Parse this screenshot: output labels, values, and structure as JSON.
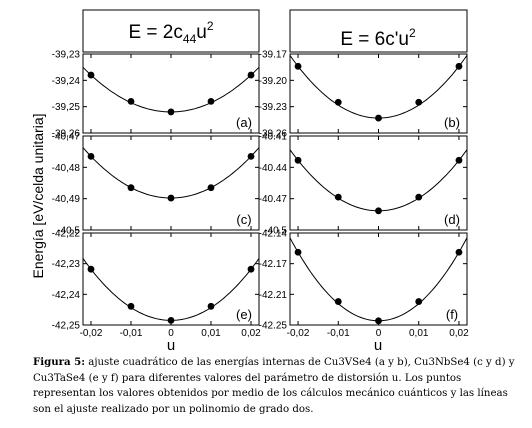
{
  "header": {
    "left": {
      "prefix": "E = 2c",
      "sub": "44",
      "var": "u",
      "sup": "2"
    },
    "right": {
      "prefix": "E = 6c'u",
      "sup": "2"
    }
  },
  "ylabel": "Energía [eV/celda unitaria]",
  "xlabel": "u",
  "caption": {
    "label": "Figura 5:",
    "text": "ajuste cuadrático de las energías internas de Cu3VSe4 (a y b), Cu3NbSe4 (c y d) y Cu3TaSe4 (e y f) para diferentes valores del parámetro de distorsión u. Los puntos representan los valores obtenidos por medio de los cálculos mecánico cuánticos y las líneas son el ajuste realizado por un polinomio de grado dos."
  },
  "chart_data": [
    {
      "panel": "a",
      "type": "scatter",
      "x": [
        -0.02,
        -0.01,
        0,
        0.01,
        0.02
      ],
      "y": [
        -39.238,
        -39.248,
        -39.252,
        -39.248,
        -39.238
      ],
      "ylim": [
        -39.26,
        -39.23
      ],
      "yticks": [
        "-39,23",
        "-39,24",
        "-39,25",
        "-39,26"
      ],
      "xticks": []
    },
    {
      "panel": "b",
      "type": "scatter",
      "x": [
        -0.02,
        -0.01,
        0,
        0.01,
        0.02
      ],
      "y": [
        -39.184,
        -39.225,
        -39.243,
        -39.225,
        -39.184
      ],
      "ylim": [
        -39.26,
        -39.17
      ],
      "yticks": [
        "-39.17",
        "-39.20",
        "-39.23",
        "-39.26"
      ],
      "xticks": []
    },
    {
      "panel": "c",
      "type": "scatter",
      "x": [
        -0.02,
        -0.01,
        0,
        0.01,
        0.02
      ],
      "y": [
        -40.4765,
        -40.4865,
        -40.4898,
        -40.4865,
        -40.4765
      ],
      "ylim": [
        -40.5,
        -40.47
      ],
      "yticks": [
        "-40,47",
        "-40,48",
        "-40,49",
        "-40,5"
      ],
      "xticks": []
    },
    {
      "panel": "d",
      "type": "scatter",
      "x": [
        -0.02,
        -0.01,
        0,
        0.01,
        0.02
      ],
      "y": [
        -40.411,
        -40.458,
        -40.4755,
        -40.458,
        -40.411
      ],
      "ylim": [
        -40.5,
        -40.38
      ],
      "yticks": [
        "-40.41",
        "-40.44",
        "-40.47",
        "-40.5"
      ],
      "xticks": []
    },
    {
      "panel": "e",
      "type": "scatter",
      "x": [
        -0.02,
        -0.01,
        0,
        0.01,
        0.02
      ],
      "y": [
        -42.2318,
        -42.2439,
        -42.2485,
        -42.2439,
        -42.2318
      ],
      "ylim": [
        -42.25,
        -42.22
      ],
      "yticks": [
        "-42,22",
        "-42,23",
        "-42,24",
        "-42,25"
      ],
      "xticks": [
        "-0,02",
        "-0,01",
        "0",
        "0,01",
        "0,02"
      ]
    },
    {
      "panel": "f",
      "type": "scatter",
      "x": [
        -0.02,
        -0.01,
        0,
        0.01,
        0.02
      ],
      "y": [
        -42.163,
        -42.222,
        -42.245,
        -42.222,
        -42.163
      ],
      "ylim": [
        -42.25,
        -42.14
      ],
      "yticks": [
        "-42.14",
        "-42.17",
        "-42.21",
        "-42.25"
      ],
      "xticks": [
        "-0,02",
        "-0,01",
        "0",
        "0,01",
        "0,02"
      ]
    }
  ]
}
